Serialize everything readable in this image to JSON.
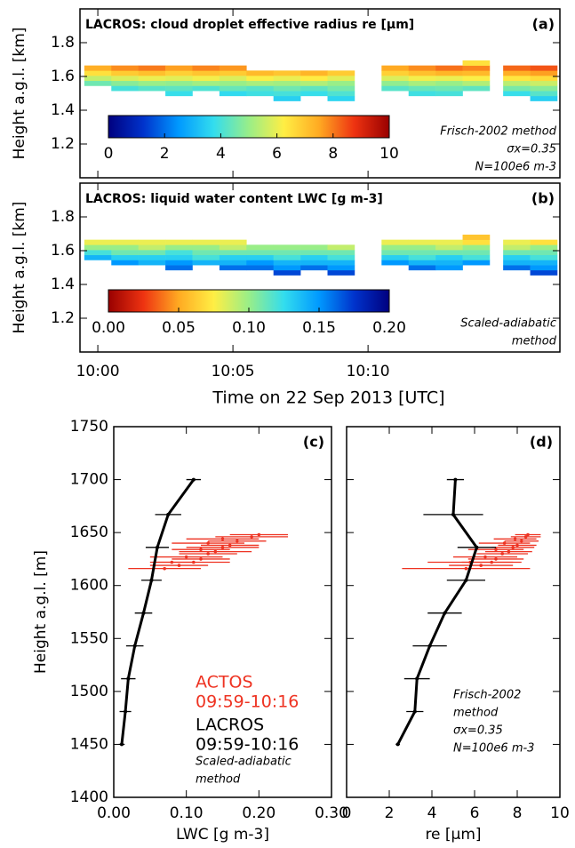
{
  "chart_data": [
    {
      "type": "heatmap",
      "title": "LACROS: cloud droplet effective radius re [µm]",
      "panel_label": "(a)",
      "ylabel": "Height a.g.l. [km]",
      "x": [
        0,
        1,
        2,
        3,
        4,
        5,
        6,
        7,
        8,
        9,
        11,
        12,
        13,
        14,
        15.5,
        16.5
      ],
      "y": [
        1.47,
        1.5,
        1.53,
        1.56,
        1.59,
        1.62,
        1.65,
        1.68
      ],
      "z": [
        [
          null,
          null,
          null,
          null,
          null,
          null,
          null,
          3.5,
          null,
          3.6,
          null,
          null,
          null,
          null,
          null,
          3.5
        ],
        [
          null,
          null,
          null,
          3.8,
          null,
          3.7,
          3.9,
          4.0,
          3.8,
          4.1,
          null,
          3.9,
          4.0,
          null,
          3.8,
          4.2
        ],
        [
          null,
          4.0,
          4.2,
          4.3,
          4.1,
          4.4,
          4.2,
          4.5,
          4.3,
          4.6,
          4.2,
          4.4,
          4.5,
          4.3,
          4.6,
          4.8
        ],
        [
          4.5,
          4.8,
          5.0,
          4.9,
          5.1,
          5.0,
          5.2,
          5.1,
          5.3,
          5.0,
          4.9,
          5.2,
          5.0,
          5.3,
          5.4,
          5.6
        ],
        [
          5.5,
          5.8,
          6.0,
          5.9,
          6.1,
          5.8,
          6.2,
          6.0,
          6.3,
          5.9,
          5.8,
          6.1,
          6.0,
          6.2,
          6.4,
          6.6
        ],
        [
          6.5,
          6.9,
          7.1,
          6.8,
          7.0,
          6.9,
          7.2,
          7.0,
          7.3,
          6.9,
          6.8,
          7.1,
          7.3,
          7.2,
          7.4,
          7.6
        ],
        [
          7.4,
          7.8,
          8.0,
          7.6,
          7.9,
          7.7,
          null,
          null,
          null,
          null,
          7.5,
          7.8,
          8.1,
          7.9,
          8.2,
          8.4
        ],
        [
          null,
          null,
          null,
          null,
          null,
          null,
          null,
          null,
          null,
          null,
          null,
          null,
          null,
          6.5,
          null,
          null
        ]
      ],
      "xlim": [
        -0.66,
        17.1
      ],
      "ylim": [
        1.0,
        2.0
      ],
      "yticks": [
        1.2,
        1.4,
        1.6,
        1.8
      ],
      "colormap": [
        "#00007f",
        "#0033cc",
        "#0099ff",
        "#33ddee",
        "#99ee88",
        "#ffee44",
        "#ffaa22",
        "#ee3311",
        "#990000"
      ],
      "clim": [
        0,
        10
      ],
      "cticks": [
        0,
        2,
        4,
        6,
        8,
        10
      ],
      "annotations": [
        "Frisch-2002 method",
        "σx=0.35",
        "N=100e6 m-3"
      ]
    },
    {
      "type": "heatmap",
      "title": "LACROS: liquid water content LWC [g m-3]",
      "panel_label": "(b)",
      "ylabel": "Height a.g.l. [km]",
      "xlabel": "Time on 22 Sep 2013 [UTC]",
      "x": [
        0,
        1,
        2,
        3,
        4,
        5,
        6,
        7,
        8,
        9,
        11,
        12,
        13,
        14,
        15.5,
        16.5
      ],
      "y": [
        1.47,
        1.5,
        1.53,
        1.56,
        1.59,
        1.62,
        1.65,
        1.68
      ],
      "z": [
        [
          null,
          null,
          null,
          null,
          null,
          null,
          null,
          0.17,
          null,
          0.17,
          null,
          null,
          null,
          null,
          null,
          0.17
        ],
        [
          null,
          null,
          null,
          0.16,
          null,
          0.16,
          0.16,
          0.15,
          0.16,
          0.15,
          null,
          0.16,
          0.15,
          null,
          0.16,
          0.15
        ],
        [
          null,
          0.15,
          0.14,
          0.15,
          0.14,
          0.14,
          0.15,
          0.14,
          0.14,
          0.14,
          0.15,
          0.14,
          0.14,
          0.15,
          0.14,
          0.14
        ],
        [
          0.14,
          0.13,
          0.13,
          0.13,
          0.12,
          0.13,
          0.13,
          0.12,
          0.13,
          0.12,
          0.13,
          0.12,
          0.13,
          0.12,
          0.13,
          0.12
        ],
        [
          0.12,
          0.11,
          0.11,
          0.12,
          0.11,
          0.11,
          0.11,
          0.11,
          0.11,
          0.11,
          0.11,
          0.11,
          0.11,
          0.11,
          0.11,
          0.11
        ],
        [
          0.1,
          0.1,
          0.09,
          0.1,
          0.1,
          0.09,
          0.1,
          0.1,
          0.1,
          0.09,
          0.1,
          0.1,
          0.09,
          0.1,
          0.09,
          0.1
        ],
        [
          0.08,
          0.08,
          0.08,
          0.08,
          0.08,
          0.08,
          null,
          null,
          null,
          null,
          0.08,
          0.08,
          0.08,
          0.07,
          0.08,
          0.07
        ],
        [
          null,
          null,
          null,
          null,
          null,
          null,
          null,
          null,
          null,
          null,
          null,
          null,
          null,
          0.06,
          null,
          null
        ]
      ],
      "xlim": [
        -0.66,
        17.1
      ],
      "ylim": [
        1.0,
        2.0
      ],
      "yticks": [
        1.2,
        1.4,
        1.6,
        1.8
      ],
      "xticks": [
        {
          "value": 0,
          "label": "10:00"
        },
        {
          "value": 5,
          "label": "10:05"
        },
        {
          "value": 10,
          "label": "10:10"
        }
      ],
      "colormap": [
        "#990000",
        "#ee3311",
        "#ffaa22",
        "#ffee44",
        "#99ee88",
        "#33ddee",
        "#0099ff",
        "#0033cc",
        "#00007f"
      ],
      "clim": [
        0,
        0.2
      ],
      "cticks": [
        {
          "value": 0,
          "label": "0.00"
        },
        {
          "value": 0.05,
          "label": "0.05"
        },
        {
          "value": 0.1,
          "label": "0.10"
        },
        {
          "value": 0.15,
          "label": "0.15"
        },
        {
          "value": 0.2,
          "label": "0.20"
        }
      ],
      "annotations": [
        "Scaled-adiabatic",
        "method"
      ]
    },
    {
      "type": "profile",
      "panel_label": "(c)",
      "ylabel": "Height a.g.l. [m]",
      "xlabel": "LWC [g m-3]",
      "xlim": [
        0,
        0.3
      ],
      "ylim": [
        1400,
        1750
      ],
      "xticks": [
        {
          "value": 0,
          "label": "0.00"
        },
        {
          "value": 0.1,
          "label": "0.10"
        },
        {
          "value": 0.2,
          "label": "0.20"
        },
        {
          "value": 0.3,
          "label": "0.30"
        }
      ],
      "yticks": [
        1400,
        1450,
        1500,
        1550,
        1600,
        1650,
        1700,
        1750
      ],
      "series": [
        {
          "name": "ACTOS",
          "period": "09:59-10:16",
          "color": "#ee3322",
          "kind": "points",
          "heights": [
            1616,
            1619,
            1622,
            1625,
            1627,
            1630,
            1632,
            1634,
            1636,
            1638,
            1640,
            1642,
            1644,
            1646,
            1648,
            1622
          ],
          "values": [
            0.07,
            0.09,
            0.11,
            0.12,
            0.1,
            0.13,
            0.14,
            0.12,
            0.15,
            0.16,
            0.13,
            0.17,
            0.15,
            0.19,
            0.2,
            0.08
          ],
          "errors": [
            0.05,
            0.04,
            0.05,
            0.04,
            0.05,
            0.04,
            0.05,
            0.04,
            0.05,
            0.04,
            0.05,
            0.04,
            0.05,
            0.05,
            0.04,
            0.03
          ]
        },
        {
          "name": "LACROS",
          "period": "09:59-10:16",
          "color": "#000000",
          "kind": "line",
          "heights": [
            1450,
            1481,
            1512,
            1543,
            1574,
            1605,
            1636,
            1667,
            1700
          ],
          "values": [
            0.011,
            0.016,
            0.02,
            0.029,
            0.041,
            0.052,
            0.06,
            0.075,
            0.11
          ],
          "errors": [
            0.004,
            0.008,
            0.01,
            0.012,
            0.012,
            0.014,
            0.016,
            0.018,
            0.01
          ]
        }
      ],
      "annotations": [
        "Scaled-adiabatic",
        "method"
      ]
    },
    {
      "type": "profile",
      "panel_label": "(d)",
      "xlabel": "re [µm]",
      "xlim": [
        0,
        10
      ],
      "ylim": [
        1400,
        1750
      ],
      "xticks": [
        0,
        2,
        4,
        6,
        8,
        10
      ],
      "series": [
        {
          "color": "#ee3322",
          "kind": "points",
          "heights": [
            1616,
            1619,
            1622,
            1625,
            1627,
            1630,
            1632,
            1634,
            1636,
            1638,
            1640,
            1642,
            1644,
            1646,
            1648,
            1622
          ],
          "values": [
            5.6,
            6.3,
            6.8,
            7.0,
            6.5,
            7.3,
            7.6,
            7.0,
            7.8,
            8.0,
            7.4,
            8.2,
            7.9,
            8.4,
            8.5,
            5.8
          ],
          "errors": [
            3.0,
            1.5,
            1.4,
            1.3,
            1.5,
            1.2,
            1.1,
            1.3,
            1.0,
            0.9,
            1.2,
            0.8,
            1.0,
            0.7,
            0.6,
            2.0
          ]
        },
        {
          "color": "#000000",
          "kind": "line",
          "heights": [
            1450,
            1481,
            1512,
            1543,
            1574,
            1605,
            1636,
            1667,
            1700
          ],
          "values": [
            2.4,
            3.2,
            3.3,
            3.9,
            4.6,
            5.6,
            6.1,
            5.0,
            5.1
          ],
          "errors": [
            0.1,
            0.4,
            0.6,
            0.8,
            0.8,
            0.9,
            0.9,
            1.4,
            0.4
          ]
        }
      ],
      "annotations": [
        "Frisch-2002",
        "method",
        "σx=0.35",
        "N=100e6 m-3"
      ]
    }
  ]
}
